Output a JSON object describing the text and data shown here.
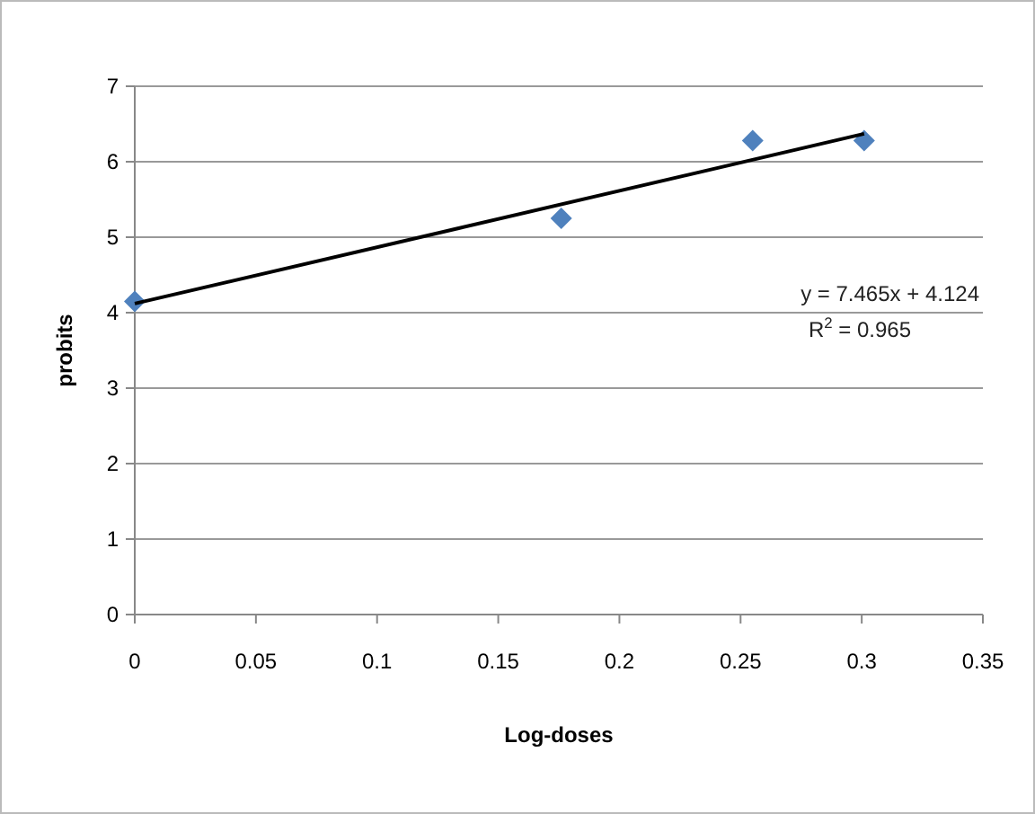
{
  "chart_data": {
    "type": "scatter",
    "xlabel": "Log-doses",
    "ylabel": "probits",
    "xlim": [
      0,
      0.35
    ],
    "xticks": [
      0,
      0.05,
      0.1,
      0.15,
      0.2,
      0.25,
      0.3,
      0.35
    ],
    "ylim": [
      0,
      7
    ],
    "yticks": [
      0,
      1,
      2,
      3,
      4,
      5,
      6,
      7
    ],
    "grid": "y",
    "marker": "diamond",
    "series": [
      {
        "color": "#4f81bd",
        "x": [
          0,
          0.176,
          0.255,
          0.301
        ],
        "values": [
          4.15,
          5.25,
          6.28,
          6.28
        ]
      },
      {
        "type": "line",
        "color": "#000000",
        "x": [
          0,
          0.301
        ],
        "values": [
          4.12,
          6.37
        ],
        "marker": "none",
        "line_style": "solid"
      }
    ],
    "annotations": [
      "y = 7.465x + 4.124",
      "R$^{2}$ = 0.965"
    ]
  }
}
